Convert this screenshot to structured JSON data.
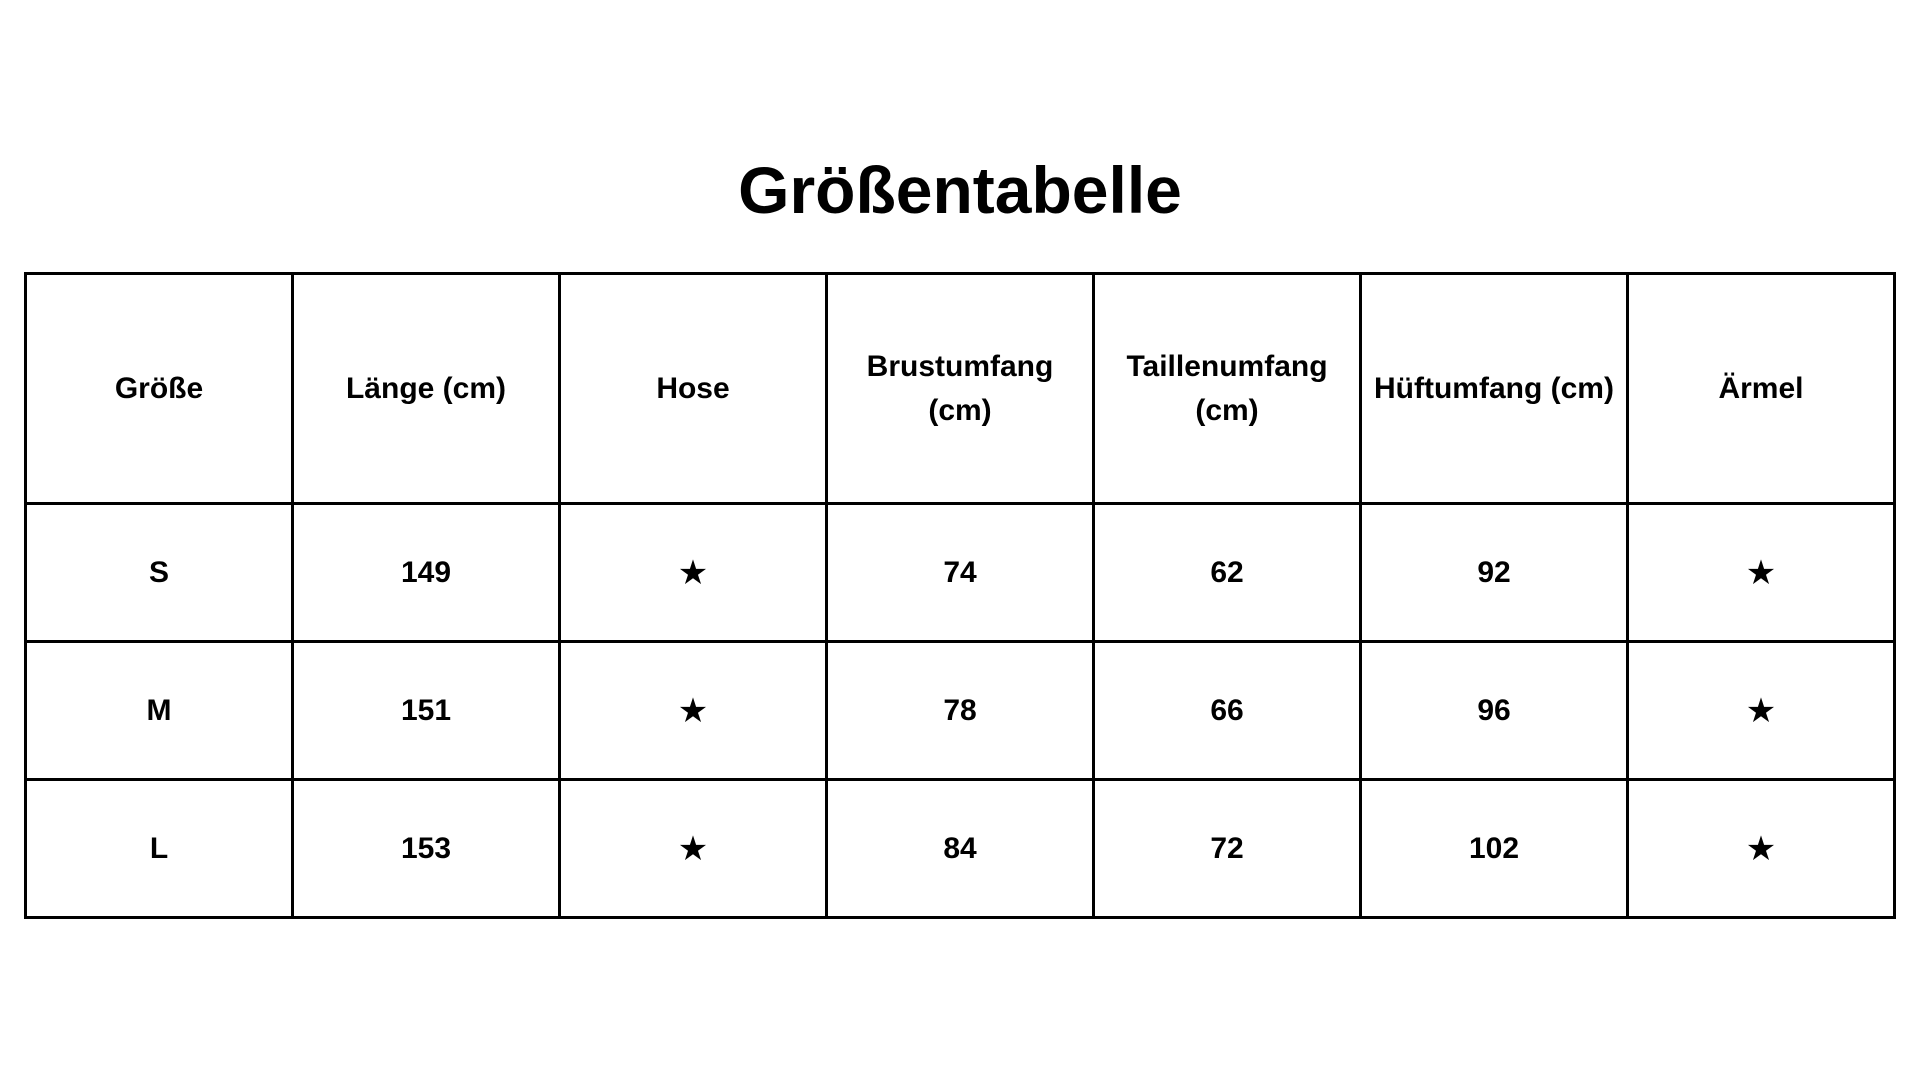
{
  "title": "Größentabelle",
  "table": {
    "headers": [
      "Größe",
      "Länge (cm)",
      "Hose",
      "Brustumfang (cm)",
      "Taillenumfang (cm)",
      "Hüftumfang (cm)",
      "Ärmel"
    ],
    "rows": [
      [
        "S",
        "149",
        "★",
        "74",
        "62",
        "92",
        "★"
      ],
      [
        "M",
        "151",
        "★",
        "78",
        "66",
        "96",
        "★"
      ],
      [
        "L",
        "153",
        "★",
        "84",
        "72",
        "102",
        "★"
      ]
    ]
  }
}
